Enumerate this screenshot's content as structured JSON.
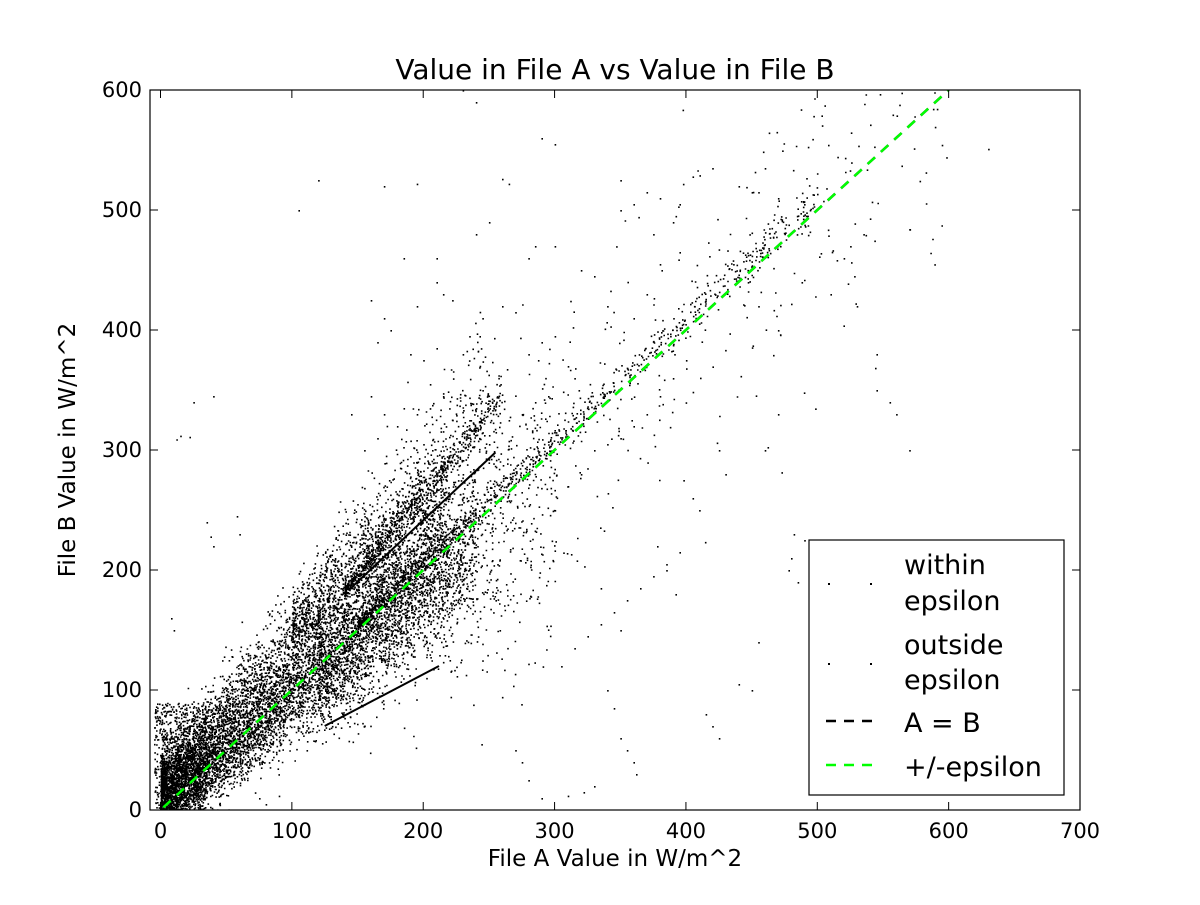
{
  "chart_data": {
    "type": "scatter",
    "title": "Value in File A vs Value in File B",
    "xlabel": "File A Value in W/m^2",
    "ylabel": "File B Value in W/m^2",
    "xlim": [
      -8,
      700
    ],
    "ylim": [
      0,
      600
    ],
    "xticks": [
      0,
      100,
      200,
      300,
      400,
      500,
      600,
      700
    ],
    "yticks": [
      0,
      100,
      200,
      300,
      400,
      500,
      600
    ],
    "grid": false,
    "legend_position": "lower-right",
    "legend": [
      {
        "label": "within\nepsilon",
        "marker": "point",
        "color": "#000000"
      },
      {
        "label": "outside\nepsilon",
        "marker": "point",
        "color": "#000000"
      },
      {
        "label": "A = B",
        "marker": "dashed-line",
        "color": "#000000"
      },
      {
        "label": "+/-epsilon",
        "marker": "dashed-line",
        "color": "#00ff00"
      }
    ],
    "reference_lines": [
      {
        "name": "A = B",
        "x": [
          -8,
          600
        ],
        "y": [
          -8,
          600
        ],
        "color": "#000000",
        "dash": "dashed"
      },
      {
        "name": "+/-epsilon",
        "x": [
          -8,
          600
        ],
        "y": [
          -8,
          600
        ],
        "color": "#00ff00",
        "dash": "dashed"
      }
    ],
    "clusters": [
      {
        "x_range": [
          0,
          220
        ],
        "spread": 25,
        "slope": 1.0,
        "intercept": 20,
        "count": 5200
      },
      {
        "x_range": [
          0,
          240
        ],
        "spread": 18,
        "slope": 0.9,
        "intercept": 0,
        "count": 3200
      },
      {
        "x_range": [
          150,
          500
        ],
        "spread": 6,
        "slope": 1.02,
        "intercept": 2,
        "count": 900
      },
      {
        "x_range": [
          140,
          260
        ],
        "spread": 6,
        "slope": 1.35,
        "intercept": -5,
        "count": 600
      },
      {
        "x_range": [
          120,
          300
        ],
        "spread": 45,
        "slope": 0.85,
        "intercept": 15,
        "count": 1100
      },
      {
        "x_range": [
          100,
          250
        ],
        "spread": 25,
        "slope": 1.15,
        "intercept": 40,
        "count": 900
      },
      {
        "x_range": [
          200,
          600
        ],
        "spread": 60,
        "slope": 1.0,
        "intercept": 0,
        "count": 450
      }
    ],
    "segments": [
      {
        "x": [
          125,
          212
        ],
        "y": [
          70,
          120
        ]
      },
      {
        "x": [
          145,
          255
        ],
        "y": [
          185,
          298
        ]
      }
    ],
    "outliers": [
      [
        15,
        312
      ],
      [
        22,
        311
      ],
      [
        12,
        309
      ],
      [
        35,
        240
      ],
      [
        38,
        228
      ],
      [
        40,
        220
      ],
      [
        8,
        160
      ],
      [
        10,
        150
      ],
      [
        25,
        340
      ],
      [
        40,
        345
      ],
      [
        60,
        230
      ],
      [
        58,
        245
      ],
      [
        75,
        10
      ],
      [
        80,
        5
      ],
      [
        90,
        12
      ],
      [
        170,
        520
      ],
      [
        195,
        522
      ],
      [
        260,
        526
      ],
      [
        265,
        522
      ],
      [
        350,
        525
      ],
      [
        405,
        528
      ],
      [
        420,
        535
      ],
      [
        460,
        535
      ],
      [
        455,
        515
      ],
      [
        470,
        510
      ],
      [
        440,
        520
      ],
      [
        450,
        515
      ],
      [
        630,
        551
      ],
      [
        545,
        380
      ],
      [
        540,
        493
      ],
      [
        535,
        480
      ],
      [
        530,
        420
      ],
      [
        528,
        445
      ],
      [
        520,
        460
      ],
      [
        525,
        470
      ],
      [
        510,
        430
      ],
      [
        488,
        440
      ],
      [
        480,
        422
      ],
      [
        470,
        400
      ],
      [
        555,
        340
      ],
      [
        560,
        330
      ],
      [
        545,
        350
      ],
      [
        570,
        300
      ],
      [
        450,
        100
      ],
      [
        440,
        105
      ],
      [
        425,
        60
      ],
      [
        420,
        70
      ],
      [
        415,
        80
      ],
      [
        495,
        110
      ],
      [
        505,
        120
      ],
      [
        485,
        190
      ],
      [
        455,
        140
      ],
      [
        350,
        150
      ],
      [
        335,
        185
      ],
      [
        340,
        100
      ],
      [
        345,
        85
      ],
      [
        330,
        20
      ],
      [
        322,
        15
      ],
      [
        310,
        12
      ],
      [
        290,
        10
      ],
      [
        280,
        25
      ],
      [
        275,
        40
      ],
      [
        270,
        50
      ],
      [
        360,
        40
      ],
      [
        362,
        30
      ],
      [
        355,
        50
      ],
      [
        350,
        60
      ],
      [
        210,
        440
      ],
      [
        215,
        430
      ],
      [
        222,
        425
      ],
      [
        245,
        410
      ],
      [
        260,
        420
      ],
      [
        270,
        415
      ],
      [
        280,
        460
      ],
      [
        285,
        470
      ],
      [
        300,
        470
      ],
      [
        320,
        450
      ],
      [
        330,
        445
      ],
      [
        340,
        420
      ],
      [
        360,
        410
      ],
      [
        370,
        430
      ],
      [
        380,
        455
      ],
      [
        395,
        465
      ],
      [
        375,
        480
      ],
      [
        390,
        490
      ],
      [
        395,
        505
      ],
      [
        380,
        510
      ],
      [
        370,
        515
      ],
      [
        360,
        505
      ],
      [
        350,
        500
      ],
      [
        290,
        560
      ],
      [
        300,
        555
      ],
      [
        250,
        490
      ],
      [
        240,
        480
      ],
      [
        235,
        395
      ],
      [
        230,
        380
      ],
      [
        210,
        385
      ],
      [
        200,
        375
      ],
      [
        190,
        380
      ],
      [
        175,
        400
      ],
      [
        170,
        410
      ],
      [
        160,
        425
      ],
      [
        165,
        390
      ],
      [
        195,
        420
      ],
      [
        185,
        460
      ],
      [
        120,
        525
      ],
      [
        105,
        500
      ],
      [
        490,
        225
      ],
      [
        480,
        210
      ],
      [
        482,
        230
      ],
      [
        478,
        200
      ],
      [
        455,
        420
      ],
      [
        460,
        300
      ],
      [
        470,
        330
      ],
      [
        430,
        280
      ],
      [
        425,
        300
      ],
      [
        410,
        250
      ],
      [
        405,
        260
      ],
      [
        398,
        275
      ],
      [
        392,
        180
      ],
      [
        385,
        200
      ],
      [
        378,
        220
      ],
      [
        230,
        600
      ],
      [
        240,
        590
      ],
      [
        210,
        460
      ],
      [
        280,
        380
      ],
      [
        290,
        390
      ],
      [
        300,
        395
      ],
      [
        310,
        370
      ],
      [
        315,
        360
      ],
      [
        295,
        345
      ],
      [
        285,
        340
      ],
      [
        275,
        330
      ],
      [
        265,
        325
      ],
      [
        255,
        315
      ],
      [
        250,
        305
      ],
      [
        245,
        350
      ],
      [
        240,
        335
      ],
      [
        235,
        325
      ],
      [
        225,
        310
      ],
      [
        215,
        345
      ],
      [
        205,
        355
      ],
      [
        195,
        330
      ],
      [
        185,
        335
      ],
      [
        180,
        320
      ],
      [
        170,
        330
      ],
      [
        165,
        310
      ],
      [
        155,
        300
      ],
      [
        145,
        330
      ],
      [
        160,
        345
      ],
      [
        190,
        295
      ],
      [
        200,
        305
      ],
      [
        220,
        290
      ],
      [
        230,
        280
      ],
      [
        305,
        120
      ],
      [
        315,
        135
      ],
      [
        325,
        145
      ],
      [
        335,
        155
      ],
      [
        345,
        165
      ],
      [
        355,
        175
      ],
      [
        365,
        185
      ],
      [
        375,
        195
      ],
      [
        385,
        205
      ],
      [
        395,
        215
      ],
      [
        300,
        250
      ],
      [
        310,
        270
      ],
      [
        320,
        280
      ],
      [
        330,
        300
      ],
      [
        340,
        305
      ],
      [
        350,
        310
      ],
      [
        360,
        320
      ],
      [
        370,
        330
      ],
      [
        380,
        345
      ],
      [
        390,
        360
      ],
      [
        400,
        375
      ]
    ]
  }
}
